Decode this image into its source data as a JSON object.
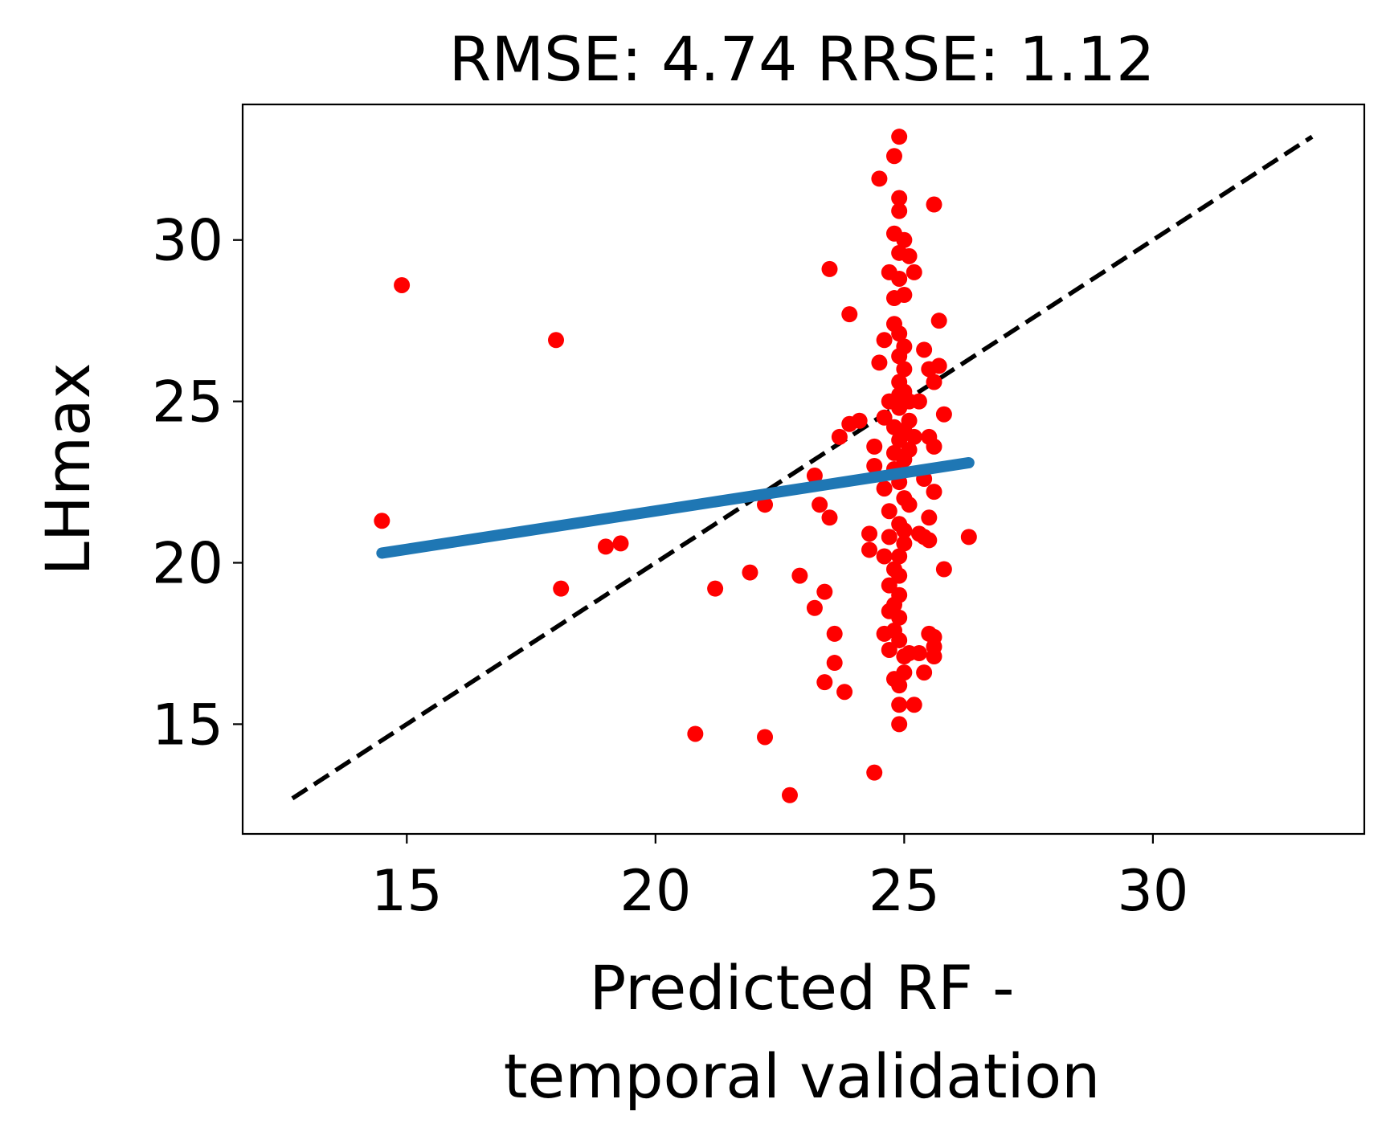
{
  "chart_data": {
    "type": "scatter",
    "title": "RMSE: 4.74 RRSE: 1.12",
    "xlabel": [
      "Predicted RF -",
      "temporal validation"
    ],
    "ylabel": "LHmax",
    "xlim": [
      11.7,
      34.25
    ],
    "ylim": [
      11.6,
      34.2
    ],
    "xticks": [
      15,
      20,
      25,
      30
    ],
    "yticks": [
      15,
      20,
      25,
      30
    ],
    "grid": false,
    "colors": {
      "points": "#ff0000",
      "fit_line": "#1f77b4",
      "identity_line": "#000000"
    },
    "identity_line": {
      "x": [
        12.7,
        33.2
      ],
      "y": [
        12.7,
        33.2
      ]
    },
    "fit_line": {
      "x": [
        14.5,
        26.3
      ],
      "y": [
        20.3,
        23.1
      ]
    },
    "points": [
      [
        14.9,
        28.6
      ],
      [
        18.0,
        26.9
      ],
      [
        14.5,
        21.3
      ],
      [
        18.1,
        19.2
      ],
      [
        19.0,
        20.5
      ],
      [
        19.3,
        20.6
      ],
      [
        20.8,
        14.7
      ],
      [
        21.2,
        19.2
      ],
      [
        21.9,
        19.7
      ],
      [
        22.2,
        14.6
      ],
      [
        22.2,
        21.8
      ],
      [
        22.7,
        12.8
      ],
      [
        22.9,
        19.6
      ],
      [
        23.2,
        18.6
      ],
      [
        23.2,
        22.7
      ],
      [
        23.3,
        21.8
      ],
      [
        23.4,
        19.1
      ],
      [
        23.4,
        16.3
      ],
      [
        23.5,
        21.4
      ],
      [
        23.5,
        29.1
      ],
      [
        23.6,
        16.9
      ],
      [
        23.6,
        17.8
      ],
      [
        23.7,
        23.9
      ],
      [
        23.8,
        16.0
      ],
      [
        23.9,
        27.7
      ],
      [
        23.9,
        24.3
      ],
      [
        24.1,
        24.4
      ],
      [
        24.4,
        13.5
      ],
      [
        24.4,
        23.6
      ],
      [
        24.4,
        23.0
      ],
      [
        24.3,
        20.9
      ],
      [
        24.3,
        20.4
      ],
      [
        24.5,
        31.9
      ],
      [
        24.5,
        26.2
      ],
      [
        24.6,
        24.5
      ],
      [
        24.6,
        20.2
      ],
      [
        24.6,
        17.8
      ],
      [
        24.6,
        22.3
      ],
      [
        24.6,
        26.9
      ],
      [
        24.7,
        29.0
      ],
      [
        24.7,
        25.0
      ],
      [
        24.7,
        19.3
      ],
      [
        24.7,
        18.5
      ],
      [
        24.7,
        17.3
      ],
      [
        24.7,
        20.8
      ],
      [
        24.7,
        21.6
      ],
      [
        24.8,
        32.6
      ],
      [
        24.8,
        30.2
      ],
      [
        24.8,
        28.2
      ],
      [
        24.8,
        27.4
      ],
      [
        24.8,
        24.2
      ],
      [
        24.8,
        23.4
      ],
      [
        24.8,
        22.9
      ],
      [
        24.8,
        19.8
      ],
      [
        24.8,
        18.7
      ],
      [
        24.8,
        17.9
      ],
      [
        24.8,
        16.4
      ],
      [
        24.9,
        33.2
      ],
      [
        24.9,
        31.3
      ],
      [
        24.9,
        30.9
      ],
      [
        24.9,
        29.6
      ],
      [
        24.9,
        28.8
      ],
      [
        24.9,
        27.1
      ],
      [
        24.9,
        26.4
      ],
      [
        24.9,
        25.6
      ],
      [
        24.9,
        25.2
      ],
      [
        24.9,
        24.8
      ],
      [
        24.9,
        23.8
      ],
      [
        24.9,
        22.5
      ],
      [
        24.9,
        21.2
      ],
      [
        24.9,
        20.2
      ],
      [
        24.9,
        19.6
      ],
      [
        24.9,
        19.0
      ],
      [
        24.9,
        18.3
      ],
      [
        24.9,
        17.6
      ],
      [
        24.9,
        16.2
      ],
      [
        24.9,
        15.6
      ],
      [
        24.9,
        15.0
      ],
      [
        25.0,
        30.0
      ],
      [
        25.0,
        28.3
      ],
      [
        25.0,
        26.7
      ],
      [
        25.0,
        26.0
      ],
      [
        25.0,
        25.3
      ],
      [
        25.0,
        24.1
      ],
      [
        25.0,
        23.2
      ],
      [
        25.0,
        22.0
      ],
      [
        25.0,
        21.0
      ],
      [
        25.0,
        20.6
      ],
      [
        25.0,
        17.1
      ],
      [
        25.0,
        16.6
      ],
      [
        25.1,
        29.5
      ],
      [
        25.1,
        25.0
      ],
      [
        25.1,
        24.4
      ],
      [
        25.1,
        23.5
      ],
      [
        25.1,
        21.8
      ],
      [
        25.1,
        17.2
      ],
      [
        25.2,
        29.0
      ],
      [
        25.2,
        15.6
      ],
      [
        25.2,
        23.9
      ],
      [
        25.3,
        25.0
      ],
      [
        25.3,
        17.2
      ],
      [
        25.3,
        20.9
      ],
      [
        25.4,
        16.6
      ],
      [
        25.4,
        22.6
      ],
      [
        25.4,
        26.6
      ],
      [
        25.4,
        20.8
      ],
      [
        25.5,
        17.8
      ],
      [
        25.5,
        21.4
      ],
      [
        25.5,
        26.0
      ],
      [
        25.5,
        23.9
      ],
      [
        25.5,
        20.7
      ],
      [
        25.6,
        31.1
      ],
      [
        25.6,
        22.2
      ],
      [
        25.6,
        17.4
      ],
      [
        25.6,
        23.6
      ],
      [
        25.6,
        17.1
      ],
      [
        25.6,
        17.7
      ],
      [
        25.6,
        25.6
      ],
      [
        25.7,
        27.5
      ],
      [
        25.7,
        26.1
      ],
      [
        25.8,
        19.8
      ],
      [
        25.8,
        24.6
      ],
      [
        26.3,
        20.8
      ]
    ]
  }
}
